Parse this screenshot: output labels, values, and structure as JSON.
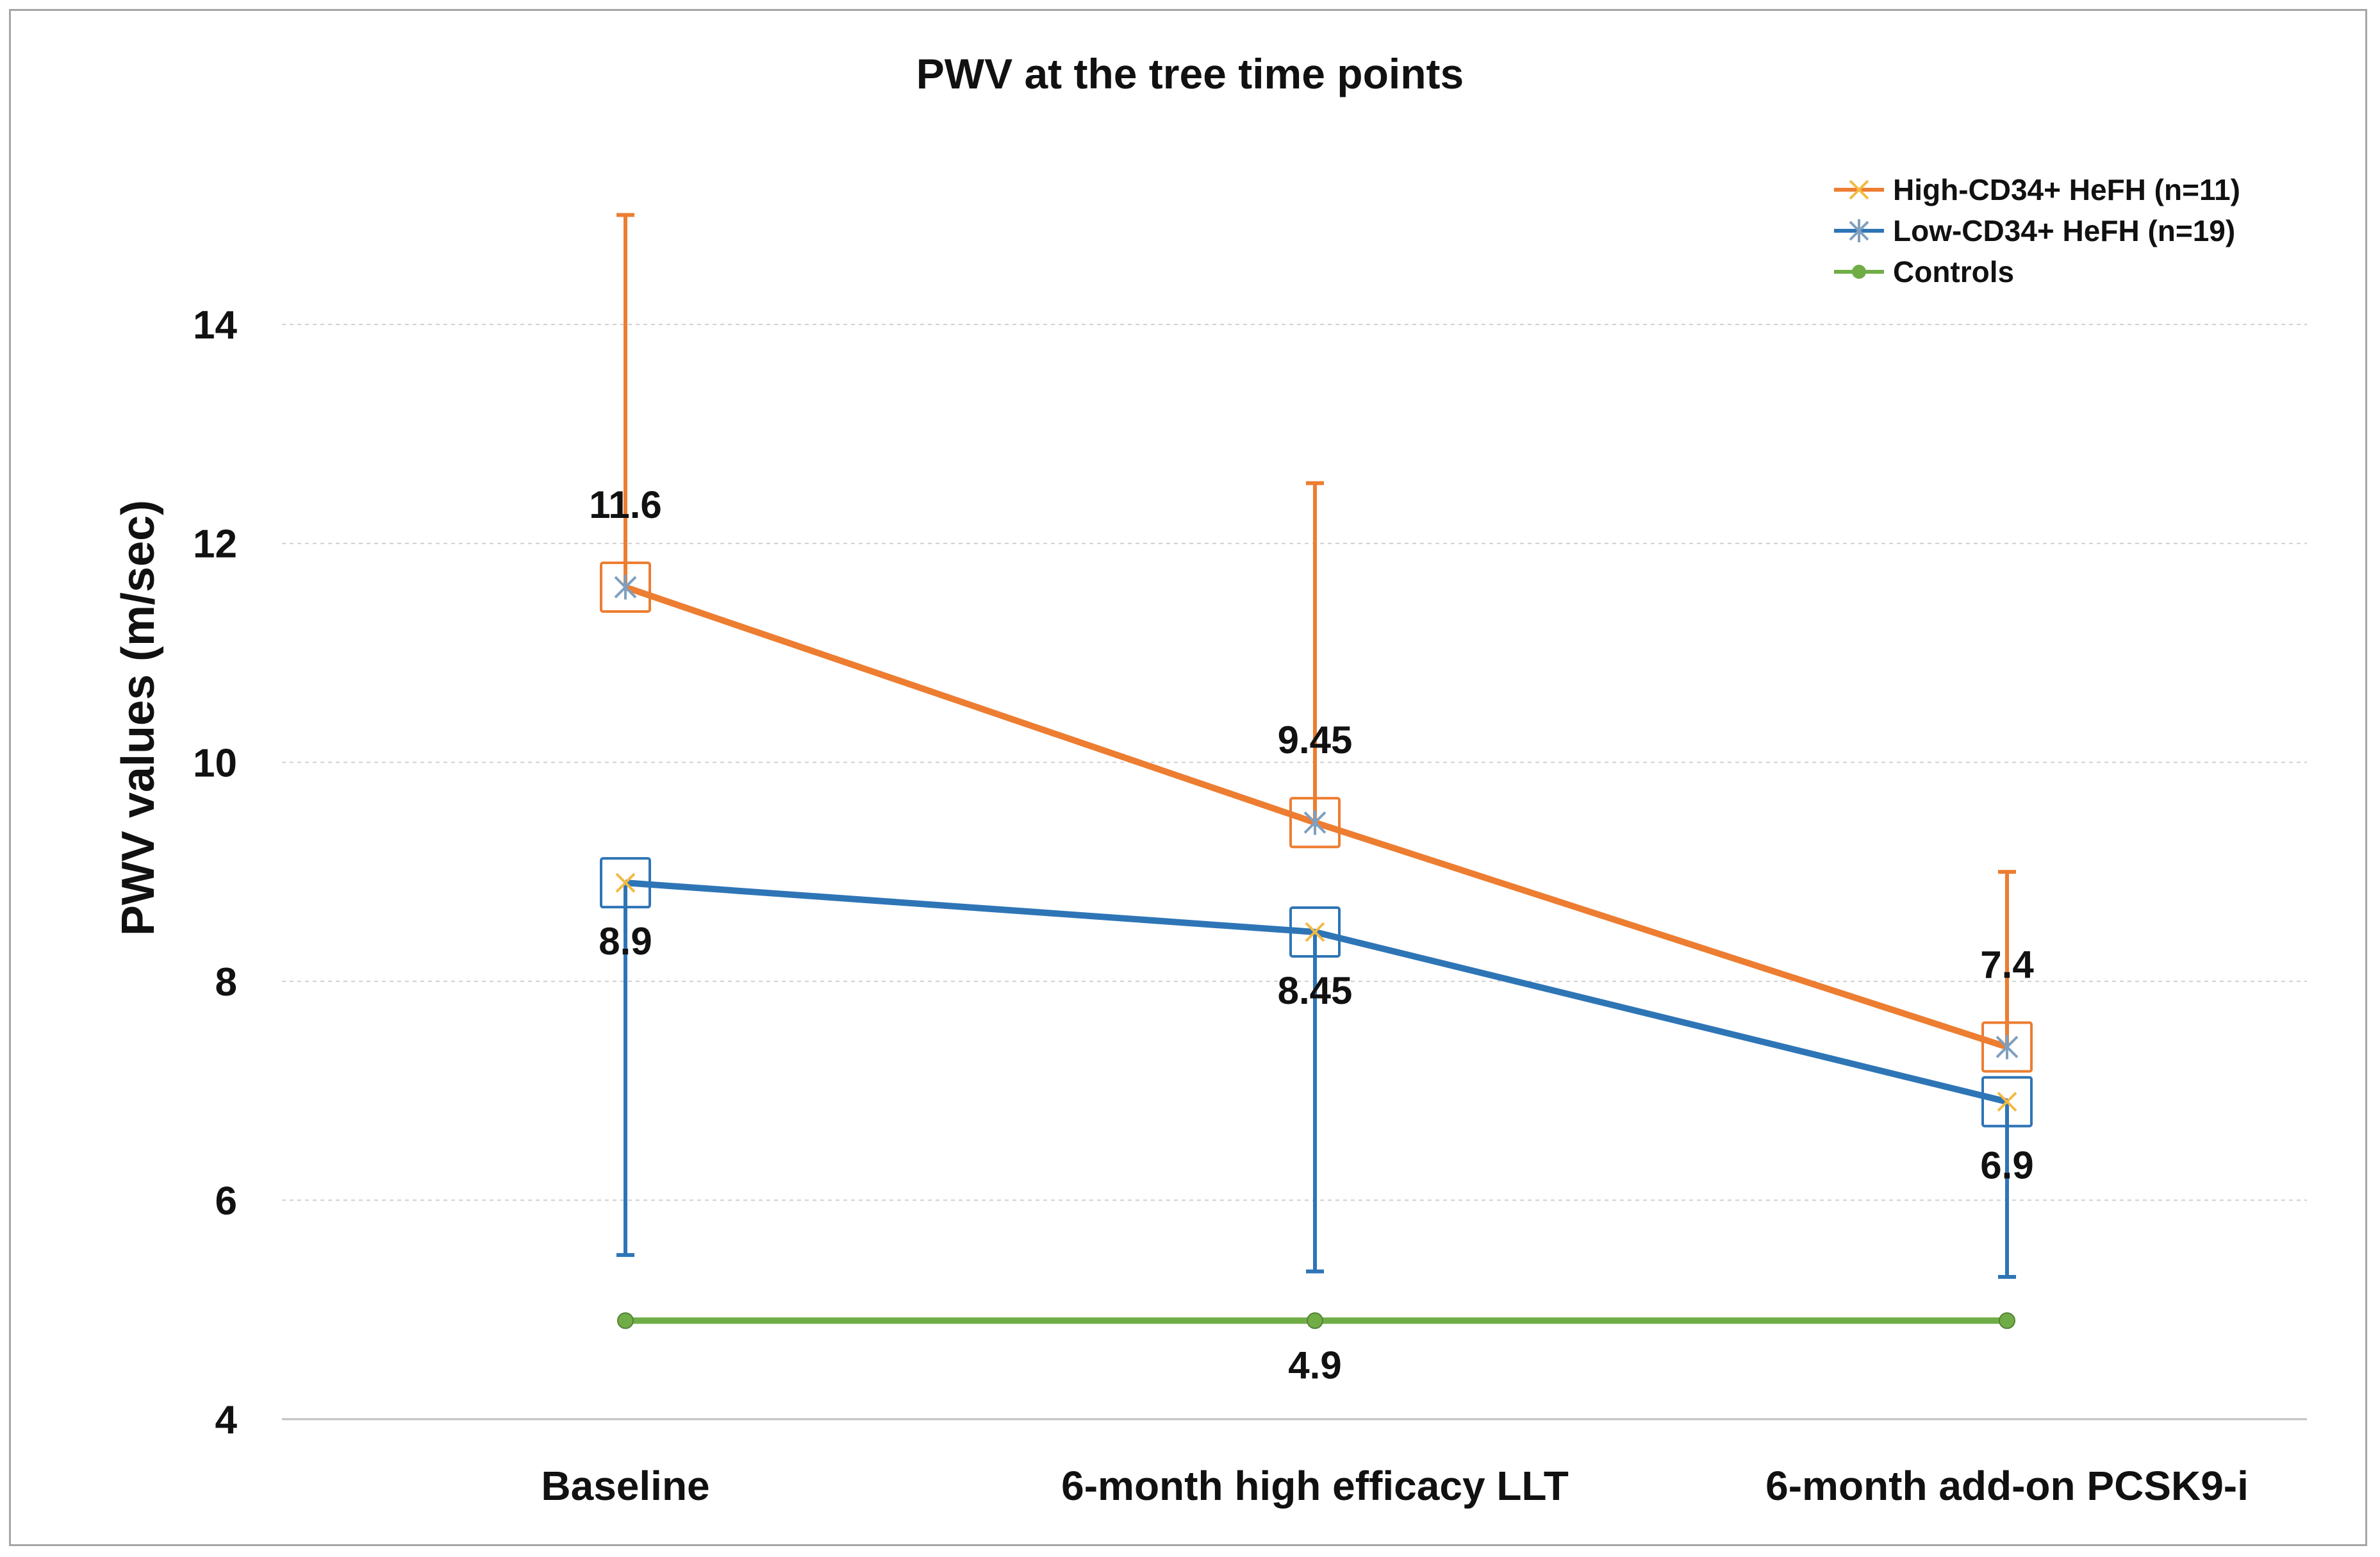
{
  "chart_data": {
    "type": "line",
    "title": "PWV at the tree time points",
    "xlabel": "",
    "ylabel": "PWV values (m/sec)",
    "categories": [
      "Baseline",
      "6-month high efficacy LLT",
      "6-month add-on PCSK9-i"
    ],
    "ylim": [
      4,
      15.5
    ],
    "yticks": [
      4,
      6,
      8,
      10,
      12,
      14
    ],
    "grid": true,
    "legend_position": "top-right",
    "series": [
      {
        "name": "High-CD34+ HeFH (n=11)",
        "color": "#ed7d31",
        "values": [
          11.6,
          9.45,
          7.4
        ],
        "labels": [
          "11.6",
          "9.45",
          "7.4"
        ],
        "error_upper": [
          15.0,
          12.55,
          9.0
        ],
        "error_lower": [
          null,
          null,
          null
        ]
      },
      {
        "name": "Low-CD34+ HeFH (n=19)",
        "color": "#2e75b6",
        "values": [
          8.9,
          8.45,
          6.9
        ],
        "labels": [
          "8.9",
          "8.45",
          "6.9"
        ],
        "error_upper": [
          null,
          null,
          null
        ],
        "error_lower": [
          5.5,
          5.35,
          5.3
        ]
      },
      {
        "name": "Controls",
        "color": "#70ad47",
        "values": [
          4.9,
          4.9,
          4.9
        ],
        "labels": [
          "",
          "4.9",
          ""
        ],
        "error_upper": [
          null,
          null,
          null
        ],
        "error_lower": [
          null,
          null,
          null
        ]
      }
    ]
  }
}
